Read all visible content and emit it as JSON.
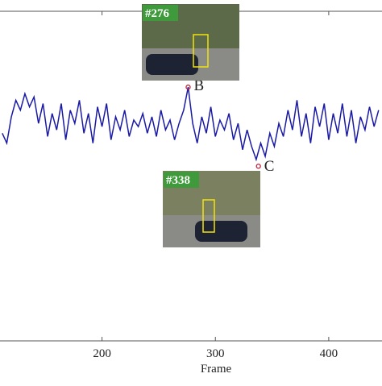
{
  "chart_data": {
    "type": "line",
    "x_label": "Frame",
    "xlim": [
      110,
      447
    ],
    "ylim": [
      0,
      1
    ],
    "xticks": [
      200,
      300,
      400
    ],
    "x": [
      112,
      116,
      120,
      124,
      128,
      132,
      136,
      140,
      144,
      148,
      152,
      156,
      160,
      164,
      168,
      172,
      176,
      180,
      184,
      188,
      192,
      196,
      200,
      204,
      208,
      212,
      216,
      220,
      224,
      228,
      232,
      236,
      240,
      244,
      248,
      252,
      256,
      260,
      264,
      268,
      272,
      276,
      280,
      284,
      288,
      292,
      296,
      300,
      304,
      308,
      312,
      316,
      320,
      324,
      328,
      332,
      336,
      340,
      344,
      348,
      352,
      356,
      360,
      364,
      368,
      372,
      376,
      380,
      384,
      388,
      392,
      396,
      400,
      404,
      408,
      412,
      416,
      420,
      424,
      428,
      432,
      436,
      440,
      444
    ],
    "series": [
      {
        "color": "#1a1aa6",
        "values": [
          0.63,
          0.6,
          0.68,
          0.73,
          0.7,
          0.75,
          0.71,
          0.74,
          0.66,
          0.72,
          0.62,
          0.69,
          0.64,
          0.72,
          0.61,
          0.7,
          0.66,
          0.73,
          0.63,
          0.69,
          0.6,
          0.71,
          0.65,
          0.72,
          0.61,
          0.68,
          0.64,
          0.7,
          0.62,
          0.67,
          0.65,
          0.69,
          0.63,
          0.68,
          0.62,
          0.7,
          0.64,
          0.67,
          0.61,
          0.66,
          0.7,
          0.77,
          0.66,
          0.6,
          0.68,
          0.63,
          0.71,
          0.62,
          0.67,
          0.64,
          0.69,
          0.61,
          0.66,
          0.58,
          0.64,
          0.59,
          0.55,
          0.6,
          0.56,
          0.63,
          0.59,
          0.66,
          0.62,
          0.7,
          0.64,
          0.73,
          0.62,
          0.69,
          0.6,
          0.71,
          0.65,
          0.72,
          0.61,
          0.69,
          0.63,
          0.72,
          0.62,
          0.7,
          0.6,
          0.68,
          0.64,
          0.71,
          0.65,
          0.7
        ]
      }
    ],
    "markers": [
      {
        "label": "B",
        "x": 276,
        "y": 0.77,
        "inset": "#276"
      },
      {
        "label": "C",
        "x": 338,
        "y": 0.53,
        "inset": "#338"
      }
    ]
  }
}
